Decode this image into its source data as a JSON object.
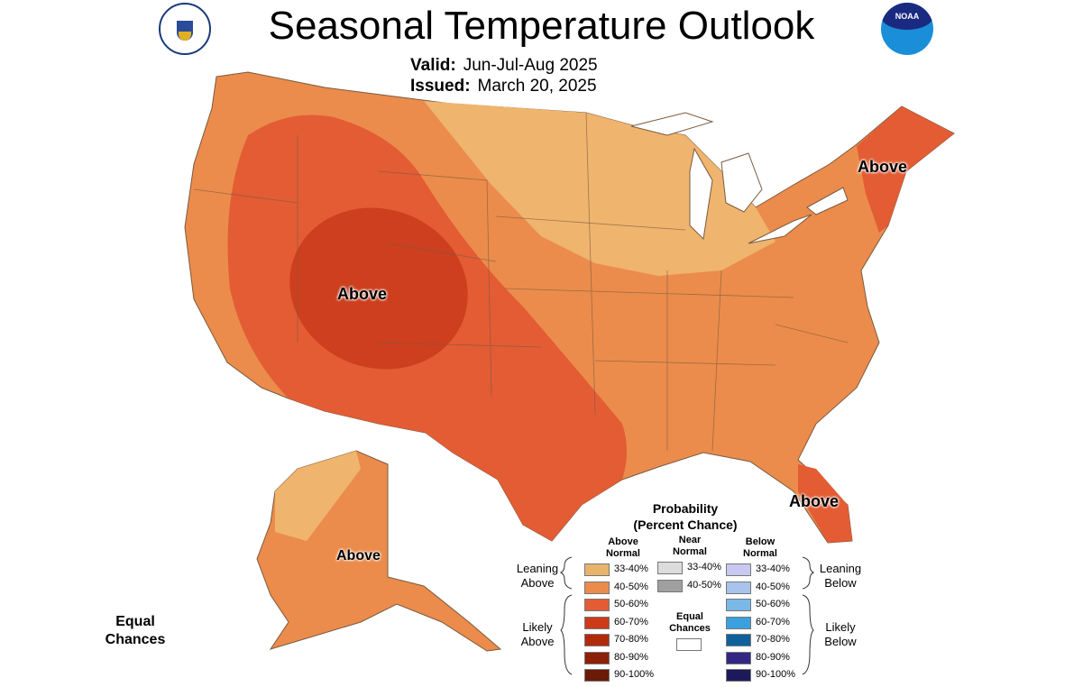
{
  "header": {
    "title": "Seasonal Temperature Outlook",
    "valid_label": "Valid:",
    "valid_value": "Jun-Jul-Aug 2025",
    "issued_label": "Issued:",
    "issued_value": "March 20, 2025",
    "logo_left": "Department of Commerce seal",
    "logo_right": "NOAA"
  },
  "map_labels": {
    "west": "Above",
    "northeast": "Above",
    "florida": "Above",
    "alaska": "Above",
    "equal_chances": "Equal Chances"
  },
  "legend": {
    "title": "Probability",
    "subtitle": "(Percent Chance)",
    "col_above": "Above Normal",
    "col_near": "Near Normal",
    "col_below": "Below Normal",
    "leaning_above": "Leaning Above",
    "likely_above": "Likely Above",
    "leaning_below": "Leaning Below",
    "likely_below": "Likely Below",
    "equal_chances": "Equal Chances",
    "above": [
      {
        "range": "33-40%",
        "color": "#e8b46c"
      },
      {
        "range": "40-50%",
        "color": "#eb8c4c"
      },
      {
        "range": "50-60%",
        "color": "#e35c34"
      },
      {
        "range": "60-70%",
        "color": "#cd3a18"
      },
      {
        "range": "70-80%",
        "color": "#b22a0c"
      },
      {
        "range": "80-90%",
        "color": "#8c2008"
      },
      {
        "range": "90-100%",
        "color": "#6a1a06"
      }
    ],
    "near": [
      {
        "range": "33-40%",
        "color": "#dcdcdc"
      },
      {
        "range": "40-50%",
        "color": "#a0a0a0"
      }
    ],
    "below": [
      {
        "range": "33-40%",
        "color": "#c8c8f0"
      },
      {
        "range": "40-50%",
        "color": "#a8c4ec"
      },
      {
        "range": "50-60%",
        "color": "#7ab8e8"
      },
      {
        "range": "60-70%",
        "color": "#3ca0e0"
      },
      {
        "range": "70-80%",
        "color": "#10609c"
      },
      {
        "range": "80-90%",
        "color": "#322884"
      },
      {
        "range": "90-100%",
        "color": "#1e1a5a"
      }
    ]
  }
}
